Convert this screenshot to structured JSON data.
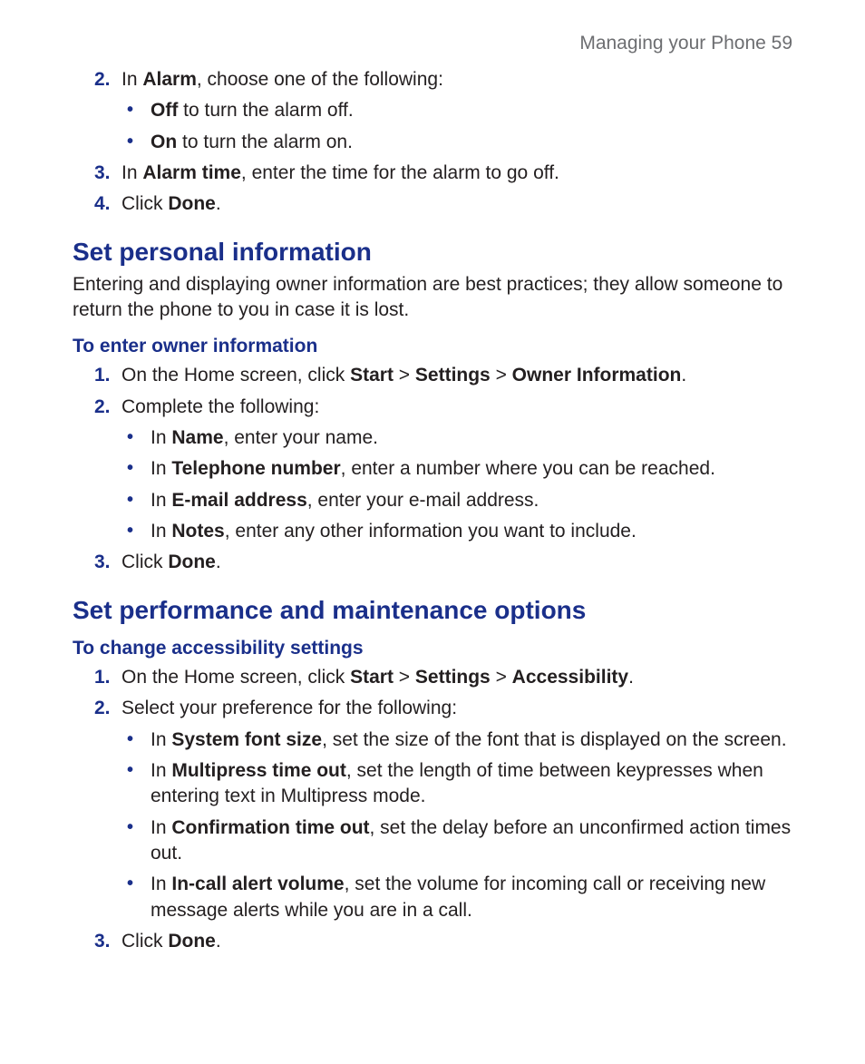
{
  "colors": {
    "accent": "#1a2f8a",
    "body_text": "#231f20",
    "muted": "#6d6e71",
    "background": "#ffffff"
  },
  "typography": {
    "body_fontsize_pt": 16,
    "h2_fontsize_pt": 21,
    "h3_fontsize_pt": 16,
    "running_head_fontsize_pt": 16,
    "font_family": "Myriad Pro / Segoe UI"
  },
  "running_head": {
    "text": "Managing your Phone  59"
  },
  "top_steps": {
    "items": [
      {
        "num": "2.",
        "parts": [
          "In ",
          "Alarm",
          ", choose one of the following:"
        ],
        "bullets": [
          {
            "parts": [
              "Off",
              " to turn the alarm off."
            ]
          },
          {
            "parts": [
              "On",
              " to turn the alarm on."
            ]
          }
        ]
      },
      {
        "num": "3.",
        "parts": [
          "In ",
          "Alarm time",
          ", enter the time for the alarm to go off."
        ]
      },
      {
        "num": "4.",
        "parts": [
          "Click ",
          "Done",
          "."
        ]
      }
    ]
  },
  "section_personal": {
    "title": "Set personal information",
    "intro": "Entering and displaying owner information are best practices; they allow someone to return the phone to you in case it is lost.",
    "sub_title": "To enter owner information",
    "steps": [
      {
        "num": "1.",
        "parts": [
          "On the Home screen, click ",
          "Start",
          " > ",
          "Settings",
          " > ",
          "Owner Information",
          "."
        ]
      },
      {
        "num": "2.",
        "parts": [
          "Complete the following:"
        ],
        "bullets": [
          {
            "parts": [
              "In ",
              "Name",
              ", enter your name."
            ]
          },
          {
            "parts": [
              "In ",
              "Telephone number",
              ", enter a number where you can be reached."
            ]
          },
          {
            "parts": [
              "In ",
              "E-mail address",
              ", enter your e-mail address."
            ]
          },
          {
            "parts": [
              "In ",
              "Notes",
              ", enter any other information you want to include."
            ]
          }
        ]
      },
      {
        "num": "3.",
        "parts": [
          "Click ",
          "Done",
          "."
        ]
      }
    ]
  },
  "section_perf": {
    "title": "Set performance and maintenance options",
    "sub_title": "To change accessibility settings",
    "steps": [
      {
        "num": "1.",
        "parts": [
          "On the Home screen, click ",
          "Start",
          " > ",
          "Settings",
          " > ",
          "Accessibility",
          "."
        ]
      },
      {
        "num": "2.",
        "parts": [
          "Select your preference for the following:"
        ],
        "bullets": [
          {
            "parts": [
              "In ",
              "System font size",
              ", set the size of the font that is displayed on the screen."
            ]
          },
          {
            "parts": [
              "In ",
              "Multipress time out",
              ", set the length of time between keypresses when entering text in Multipress mode."
            ]
          },
          {
            "parts": [
              "In ",
              "Confirmation time out",
              ", set the delay before an unconfirmed action times out."
            ]
          },
          {
            "parts": [
              "In ",
              "In-call alert volume",
              ", set the volume for incoming call or receiving new message alerts while you are in a call."
            ]
          }
        ]
      },
      {
        "num": "3.",
        "parts": [
          "Click ",
          "Done",
          "."
        ]
      }
    ]
  }
}
